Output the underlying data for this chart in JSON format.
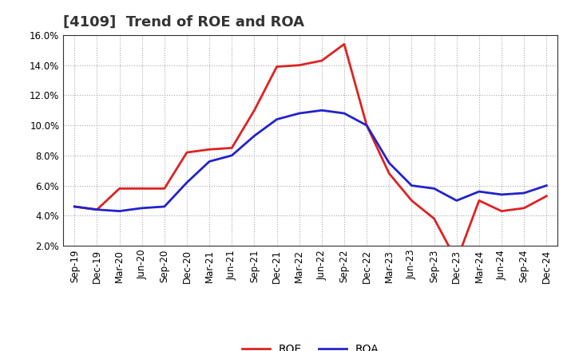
{
  "title": "[4109]  Trend of ROE and ROA",
  "x_labels": [
    "Sep-19",
    "Dec-19",
    "Mar-20",
    "Jun-20",
    "Sep-20",
    "Dec-20",
    "Mar-21",
    "Jun-21",
    "Sep-21",
    "Dec-21",
    "Mar-22",
    "Jun-22",
    "Sep-22",
    "Dec-22",
    "Mar-23",
    "Jun-23",
    "Sep-23",
    "Dec-23",
    "Mar-24",
    "Jun-24",
    "Sep-24",
    "Dec-24"
  ],
  "roe": [
    4.6,
    4.4,
    5.8,
    5.8,
    5.8,
    8.2,
    8.4,
    8.5,
    11.0,
    13.9,
    14.0,
    14.3,
    15.4,
    10.0,
    6.8,
    5.0,
    3.8,
    1.0,
    5.0,
    4.3,
    4.5,
    5.3
  ],
  "roa": [
    4.6,
    4.4,
    4.3,
    4.5,
    4.6,
    6.2,
    7.6,
    8.0,
    9.3,
    10.4,
    10.8,
    11.0,
    10.8,
    10.0,
    7.5,
    6.0,
    5.8,
    5.0,
    5.6,
    5.4,
    5.5,
    6.0
  ],
  "roe_color": "#dd2222",
  "roa_color": "#2222cc",
  "ylim": [
    2.0,
    16.0
  ],
  "yticks": [
    2.0,
    4.0,
    6.0,
    8.0,
    10.0,
    12.0,
    14.0,
    16.0
  ],
  "background_color": "#ffffff",
  "grid_color": "#aaaaaa",
  "line_width": 2.0,
  "title_fontsize": 13,
  "tick_fontsize": 8.5,
  "legend_fontsize": 10
}
